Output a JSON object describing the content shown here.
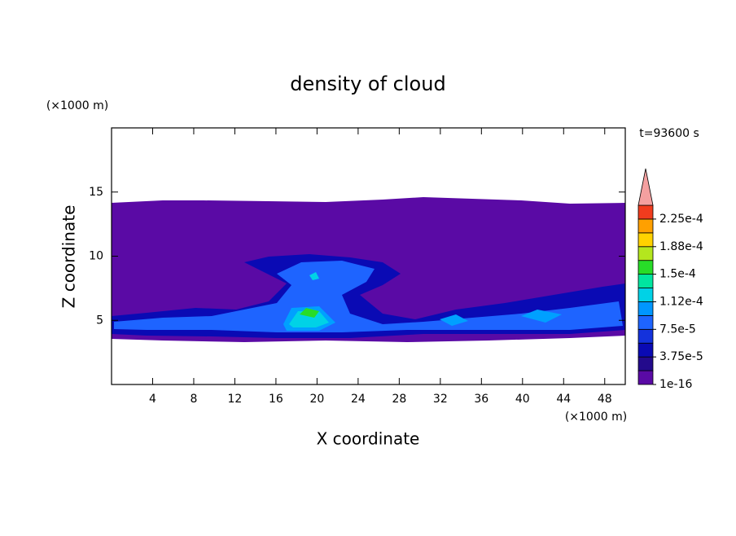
{
  "chart_data": {
    "type": "contour",
    "title": "density of cloud",
    "x_label": "X coordinate",
    "y_label": "Z coordinate",
    "x_unit": "(×1000 m)",
    "y_unit": "(×1000 m)",
    "annotation": "t=93600 s",
    "xlim": [
      0,
      50
    ],
    "xticks": [
      4,
      8,
      12,
      16,
      20,
      24,
      28,
      32,
      36,
      40,
      44,
      48
    ],
    "ylim": [
      0,
      20
    ],
    "yticks": [
      5,
      10,
      15
    ],
    "colorbar": {
      "clim": [
        1e-16,
        0.00024375
      ],
      "ticks": [
        1e-16,
        {
          "value": 3.75e-05,
          "label": "3.75e-5"
        },
        {
          "value": 7.5e-05,
          "label": "7.5e-5"
        },
        {
          "value": 0.0001125,
          "label": "1.12e-4"
        },
        {
          "value": 0.00015,
          "label": "1.5e-4"
        },
        {
          "value": 0.0001875,
          "label": "1.88e-4"
        },
        {
          "value": 0.000225,
          "label": "2.25e-4"
        }
      ],
      "colors": [
        "#5a0aa5",
        "#230a8c",
        "#0a0ab4",
        "#1432dc",
        "#1e64ff",
        "#0096ff",
        "#00d2e6",
        "#00e6a0",
        "#28dc28",
        "#b4e61e",
        "#ffd200",
        "#ffa000",
        "#f03c1e"
      ],
      "extend_color": "#f4a0a0"
    }
  }
}
